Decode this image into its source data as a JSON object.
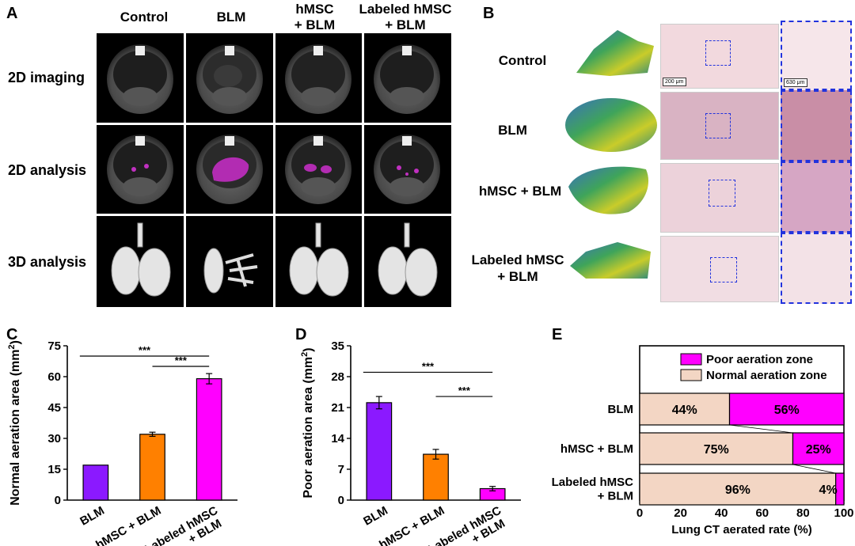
{
  "panels": {
    "A": {
      "letter": "A",
      "columns": [
        "Control",
        "BLM",
        "hMSC\n+ BLM",
        "Labeled hMSC\n+ BLM"
      ],
      "rows": [
        "2D imaging",
        "2D analysis",
        "3D analysis"
      ]
    },
    "B": {
      "letter": "B",
      "rows": [
        "Control",
        "BLM",
        "hMSC + BLM",
        "Labeled hMSC\n+ BLM"
      ],
      "scalebar_main": "200 μm",
      "scalebar_zoom": "630 μm"
    }
  },
  "colors": {
    "purple": "#8b19ff",
    "orange": "#ff8000",
    "magenta": "#ff00ff",
    "beige": "#f3d6c4",
    "dash_blue": "#2233dd"
  },
  "chart_data": [
    {
      "panel": "C",
      "type": "bar",
      "categories": [
        "BLM",
        "hMSC + BLM",
        "Labeled hMSC\n+ BLM"
      ],
      "values": [
        17,
        32,
        59
      ],
      "errors": [
        0,
        1,
        2.5
      ],
      "colors": [
        "#8b19ff",
        "#ff8000",
        "#ff00ff"
      ],
      "ylabel": "Normal aeration area (mm²)",
      "ylim": [
        0,
        75
      ],
      "yticks": [
        0,
        15,
        30,
        45,
        60,
        75
      ],
      "significance": [
        {
          "from": 0,
          "to": 2,
          "label": "***",
          "y": 70
        },
        {
          "from": 1,
          "to": 2,
          "label": "***",
          "y": 65
        }
      ]
    },
    {
      "panel": "D",
      "type": "bar",
      "categories": [
        "BLM",
        "hMSC + BLM",
        "Labeled hMSC\n+ BLM"
      ],
      "values": [
        22.1,
        10.4,
        2.6
      ],
      "errors": [
        1.4,
        1.1,
        0.5
      ],
      "colors": [
        "#8b19ff",
        "#ff8000",
        "#ff00ff"
      ],
      "ylabel": "Poor aeration area (mm²)",
      "ylim": [
        0,
        35
      ],
      "yticks": [
        0,
        7,
        14,
        21,
        28,
        35
      ],
      "significance": [
        {
          "from": 0,
          "to": 2,
          "label": "***",
          "y": 29
        },
        {
          "from": 1,
          "to": 2,
          "label": "***",
          "y": 23.5
        }
      ]
    },
    {
      "panel": "E",
      "type": "bar",
      "orientation": "horizontal-stacked",
      "categories": [
        "BLM",
        "hMSC + BLM",
        "Labeled hMSC\n+ BLM"
      ],
      "series": [
        {
          "name": "Normal aeration zone",
          "values": [
            44,
            75,
            96
          ],
          "labels": [
            "44%",
            "75%",
            "96%"
          ],
          "color": "#f3d6c4"
        },
        {
          "name": "Poor aeration zone",
          "values": [
            56,
            25,
            4
          ],
          "labels": [
            "56%",
            "25%",
            "4%"
          ],
          "color": "#ff00ff"
        }
      ],
      "xlabel": "Lung CT aerated rate (%)",
      "xlim": [
        0,
        100
      ],
      "xticks": [
        0,
        20,
        40,
        60,
        80,
        100
      ],
      "legend_placement": "top-left"
    }
  ]
}
